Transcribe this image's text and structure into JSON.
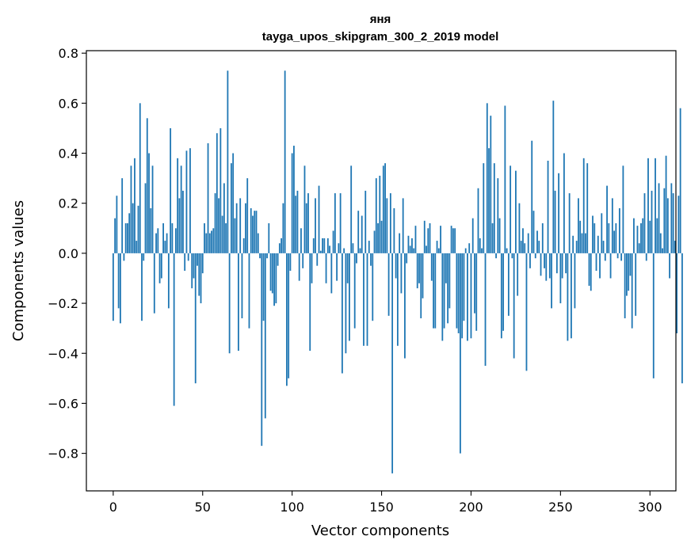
{
  "chart_data": {
    "type": "bar",
    "title_line1": "яня",
    "title_line2": "tayga_upos_skipgram_300_2_2019 model",
    "xlabel": "Vector components",
    "ylabel": "Components values",
    "xlim": [
      -15,
      314.5
    ],
    "ylim": [
      -0.95,
      0.81
    ],
    "xticks": [
      0,
      50,
      100,
      150,
      200,
      250,
      300
    ],
    "xtick_labels": [
      "0",
      "50",
      "100",
      "150",
      "200",
      "250",
      "300"
    ],
    "yticks": [
      -0.8,
      -0.6,
      -0.4,
      -0.2,
      0.0,
      0.2,
      0.4,
      0.6,
      0.8
    ],
    "ytick_labels": [
      "−0.8",
      "−0.6",
      "−0.4",
      "−0.2",
      "0.0",
      "0.2",
      "0.4",
      "0.6",
      "0.8"
    ],
    "bar_color": "#1f77b4",
    "grid": false,
    "values": [
      -0.27,
      0.14,
      0.23,
      -0.22,
      -0.28,
      0.3,
      -0.03,
      0.12,
      0.12,
      0.16,
      0.35,
      0.2,
      0.38,
      0.05,
      0.19,
      0.6,
      -0.27,
      -0.03,
      0.28,
      0.54,
      0.4,
      0.18,
      0.35,
      -0.24,
      0.08,
      0.1,
      -0.12,
      -0.1,
      0.12,
      0.05,
      0.08,
      -0.22,
      0.5,
      0.12,
      -0.61,
      0.1,
      0.38,
      0.22,
      0.35,
      0.25,
      -0.07,
      0.41,
      -0.03,
      0.42,
      -0.14,
      -0.1,
      -0.52,
      -0.05,
      -0.17,
      -0.2,
      -0.08,
      0.12,
      0.08,
      0.44,
      0.08,
      0.09,
      0.1,
      0.24,
      0.48,
      0.22,
      0.5,
      0.15,
      0.28,
      0.12,
      0.73,
      -0.4,
      0.36,
      0.4,
      0.14,
      0.2,
      -0.39,
      0.22,
      -0.26,
      0.06,
      0.2,
      0.3,
      -0.3,
      0.18,
      0.15,
      0.17,
      0.17,
      0.08,
      -0.02,
      -0.77,
      -0.27,
      -0.66,
      -0.02,
      0.12,
      -0.15,
      -0.16,
      -0.21,
      -0.2,
      -0.05,
      0.04,
      0.06,
      0.2,
      0.73,
      -0.53,
      -0.5,
      -0.07,
      0.4,
      0.43,
      0.23,
      0.25,
      -0.11,
      0.1,
      -0.06,
      0.35,
      0.2,
      0.24,
      -0.39,
      -0.12,
      0.06,
      0.22,
      -0.05,
      0.27,
      0.01,
      0.06,
      0.06,
      -0.12,
      0.06,
      0.03,
      -0.16,
      0.09,
      0.24,
      -0.11,
      0.04,
      0.24,
      -0.48,
      0.02,
      -0.4,
      -0.12,
      -0.35,
      0.35,
      0.04,
      -0.3,
      -0.04,
      0.17,
      0.02,
      0.15,
      -0.37,
      0.25,
      -0.37,
      0.05,
      -0.05,
      -0.27,
      0.09,
      0.3,
      0.12,
      0.31,
      0.13,
      0.35,
      0.36,
      0.22,
      -0.25,
      0.24,
      -0.88,
      0.18,
      -0.1,
      -0.37,
      0.08,
      -0.16,
      0.22,
      -0.42,
      -0.04,
      0.07,
      0.03,
      0.06,
      0.02,
      0.11,
      -0.14,
      -0.12,
      -0.26,
      -0.18,
      0.13,
      0.03,
      0.1,
      0.12,
      -0.11,
      -0.3,
      -0.3,
      0.05,
      0.02,
      0.11,
      -0.35,
      -0.3,
      -0.12,
      -0.28,
      -0.22,
      0.11,
      0.1,
      0.1,
      -0.3,
      -0.32,
      -0.8,
      -0.34,
      -0.27,
      0.02,
      -0.35,
      0.04,
      -0.34,
      0.14,
      -0.24,
      -0.31,
      0.26,
      0.06,
      0.02,
      0.36,
      -0.45,
      0.6,
      0.42,
      0.55,
      0.12,
      0.36,
      -0.02,
      0.3,
      0.14,
      -0.34,
      -0.31,
      0.59,
      0.02,
      -0.25,
      0.35,
      -0.02,
      -0.42,
      0.33,
      -0.17,
      0.2,
      0.05,
      0.1,
      0.04,
      -0.47,
      0.08,
      -0.06,
      0.45,
      0.17,
      -0.02,
      0.09,
      0.05,
      -0.09,
      0.12,
      -0.06,
      -0.11,
      0.37,
      -0.1,
      -0.22,
      0.61,
      0.25,
      -0.08,
      0.32,
      -0.2,
      -0.1,
      0.4,
      -0.08,
      -0.35,
      0.24,
      -0.34,
      0.07,
      -0.22,
      0.05,
      0.22,
      0.13,
      0.08,
      0.38,
      0.08,
      0.36,
      -0.13,
      -0.15,
      0.15,
      0.12,
      -0.07,
      0.07,
      -0.1,
      0.16,
      0.05,
      -0.03,
      0.27,
      0.12,
      -0.1,
      0.22,
      0.09,
      0.12,
      -0.02,
      0.18,
      -0.03,
      0.35,
      -0.26,
      -0.17,
      -0.15,
      -0.09,
      -0.3,
      0.14,
      -0.25,
      0.11,
      0.04,
      0.12,
      0.14,
      0.24,
      -0.03,
      0.38,
      0.13,
      0.25,
      -0.5,
      0.38,
      0.14,
      0.28,
      0.08,
      0.02,
      0.26,
      0.39,
      0.22,
      -0.1,
      0.28,
      0.24,
      0.05,
      -0.32,
      0.23,
      0.58,
      -0.52
    ]
  }
}
